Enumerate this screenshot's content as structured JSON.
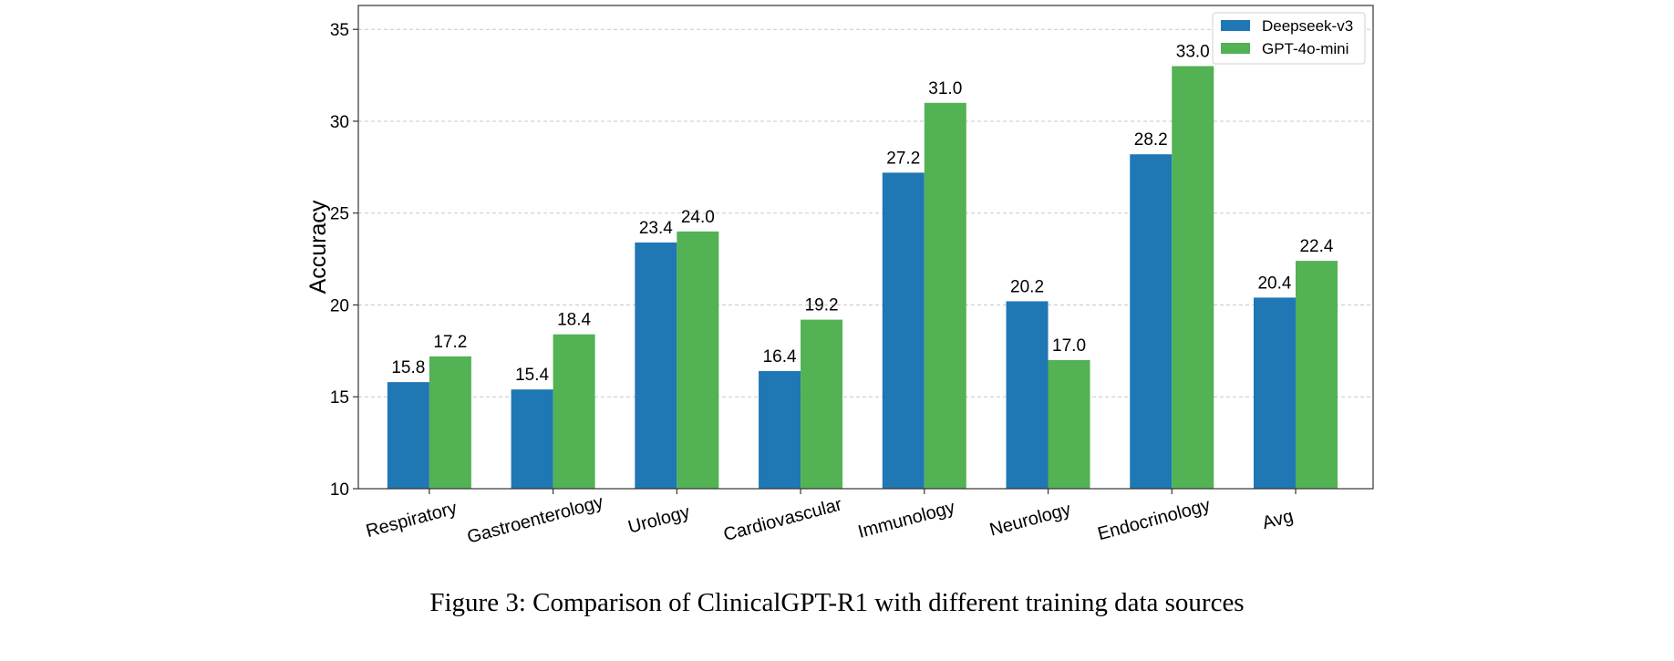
{
  "chart_data": {
    "type": "bar",
    "categories": [
      "Respiratory",
      "Gastroenterology",
      "Urology",
      "Cardiovascular",
      "Immunology",
      "Neurology",
      "Endocrinology",
      "Avg"
    ],
    "series": [
      {
        "name": "Deepseek-v3",
        "color": "#1f77b4",
        "values": [
          15.8,
          15.4,
          23.4,
          16.4,
          27.2,
          20.2,
          28.2,
          20.4
        ]
      },
      {
        "name": "GPT-4o-mini",
        "color": "#52b254",
        "values": [
          17.2,
          18.4,
          24.0,
          19.2,
          31.0,
          17.0,
          33.0,
          22.4
        ]
      }
    ],
    "value_labels": [
      [
        "15.8",
        "15.4",
        "23.4",
        "16.4",
        "27.2",
        "20.2",
        "28.2",
        "20.4"
      ],
      [
        "17.2",
        "18.4",
        "24.0",
        "19.2",
        "31.0",
        "17.0",
        "33.0",
        "22.4"
      ]
    ],
    "title": "",
    "xlabel": "",
    "ylabel": "Accuracy",
    "ylim": [
      10,
      36.3
    ],
    "yticks": [
      10,
      15,
      20,
      25,
      30,
      35
    ],
    "ytick_labels": [
      "10",
      "15",
      "20",
      "25",
      "30",
      "35"
    ],
    "grid": "y",
    "legend_position": "top-right"
  },
  "caption": "Figure 3: Comparison of ClinicalGPT-R1 with different training data sources"
}
